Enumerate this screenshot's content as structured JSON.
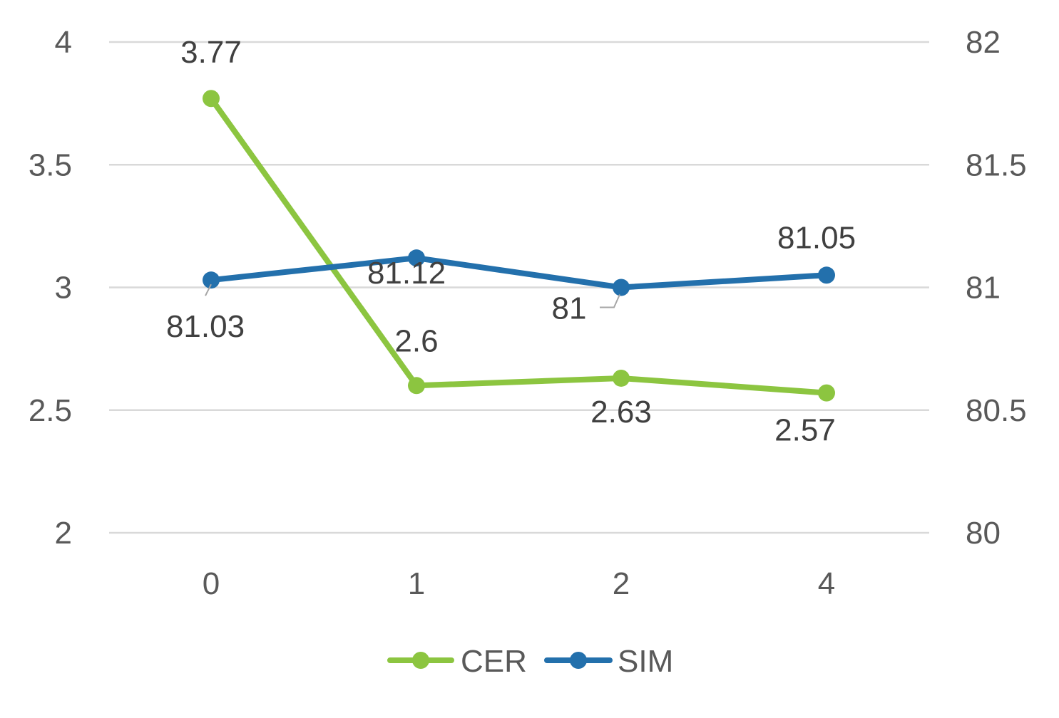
{
  "chart_data": {
    "type": "line",
    "categories": [
      "0",
      "1",
      "2",
      "4"
    ],
    "y_left": {
      "range": [
        2,
        4
      ],
      "ticks": [
        "2",
        "2.5",
        "3",
        "3.5",
        "4"
      ]
    },
    "y_right": {
      "range": [
        80,
        82
      ],
      "ticks": [
        "80",
        "80.5",
        "81",
        "81.5",
        "82"
      ]
    },
    "grid": true,
    "legend_position": "bottom",
    "series": [
      {
        "name": "CER",
        "axis": "left",
        "color": "#8CC540",
        "values": [
          3.77,
          2.6,
          2.63,
          2.57
        ],
        "labels": [
          "3.77",
          "2.6",
          "2.63",
          "2.57"
        ]
      },
      {
        "name": "SIM",
        "axis": "right",
        "color": "#2370AC",
        "values": [
          81.03,
          81.12,
          81,
          81.05
        ],
        "labels": [
          "81.03",
          "81.12",
          "81",
          "81.05"
        ]
      }
    ]
  }
}
